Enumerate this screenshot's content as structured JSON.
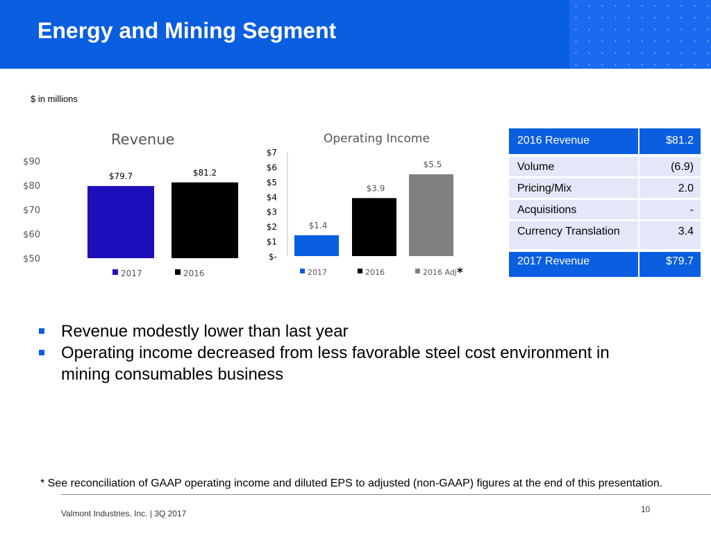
{
  "header": {
    "title": "Energy and Mining Segment"
  },
  "units_note": "$ in millions",
  "chart_data": [
    {
      "type": "bar",
      "title": "Revenue",
      "categories": [
        "2017",
        "2016"
      ],
      "values": [
        79.7,
        81.2
      ],
      "value_labels": [
        "$79.7",
        "$81.2"
      ],
      "colors": [
        "#1e0fbd",
        "#000000"
      ],
      "legend": [
        "2017",
        "2016"
      ],
      "ylim": [
        50,
        90
      ],
      "yticks": [
        50,
        60,
        70,
        80,
        90
      ],
      "ytick_labels": [
        "$50",
        "$60",
        "$70",
        "$80",
        "$90"
      ],
      "xlabel": "",
      "ylabel": "",
      "grid": false,
      "legend_position": "bottom"
    },
    {
      "type": "bar",
      "title": "Operating Income",
      "categories": [
        "2017",
        "2016",
        "2016 Adj"
      ],
      "values": [
        1.4,
        3.9,
        5.5
      ],
      "value_labels": [
        "$1.4",
        "$3.9",
        "$5.5"
      ],
      "colors": [
        "#0a5ee0",
        "#000000",
        "#808080"
      ],
      "legend": [
        "2017",
        "2016",
        "2016 Adj"
      ],
      "legend_note": "*",
      "ylim": [
        0,
        7
      ],
      "yticks": [
        0,
        1,
        2,
        3,
        4,
        5,
        6,
        7
      ],
      "ytick_labels": [
        "$-",
        "$1",
        "$2",
        "$3",
        "$4",
        "$5",
        "$6",
        "$7"
      ],
      "xlabel": "",
      "ylabel": "",
      "grid": false,
      "legend_position": "bottom"
    }
  ],
  "bridge": {
    "start": {
      "label": "2016 Revenue",
      "value": "$81.2"
    },
    "items": [
      {
        "label": "Volume",
        "value": "(6.9)"
      },
      {
        "label": "Pricing/Mix",
        "value": "2.0"
      },
      {
        "label": "Acquisitions",
        "value": "-"
      },
      {
        "label": "Currency Translation",
        "value": "3.4"
      }
    ],
    "end": {
      "label": "2017 Revenue",
      "value": "$79.7"
    }
  },
  "bullets": [
    "Revenue modestly lower than last year",
    "Operating income decreased from less favorable steel cost environment in mining consumables business"
  ],
  "footnote": "* See reconciliation of GAAP operating income and diluted EPS to adjusted (non-GAAP) figures at the end of this presentation.",
  "footer": {
    "text": "Valmont Industries. Inc.  |  3Q 2017",
    "page_number": "10"
  },
  "colors": {
    "brand_blue": "#0a5ee0",
    "light_row": "#e3e7f7"
  }
}
